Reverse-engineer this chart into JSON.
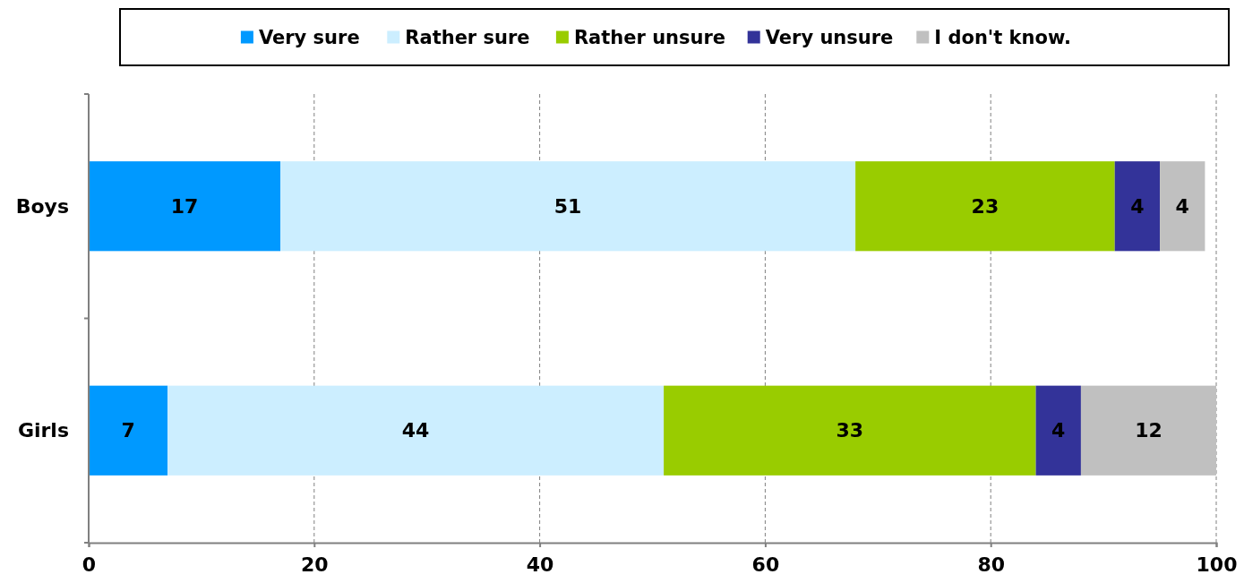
{
  "chart_data": {
    "type": "bar",
    "orientation": "horizontal",
    "stacked": true,
    "categories": [
      "Boys",
      "Girls"
    ],
    "series": [
      {
        "name": "Very sure",
        "color": "#0099ff",
        "values": [
          17,
          7
        ]
      },
      {
        "name": "Rather sure",
        "color": "#cceeff",
        "values": [
          51,
          44
        ]
      },
      {
        "name": "Rather unsure",
        "color": "#99cc00",
        "values": [
          23,
          33
        ]
      },
      {
        "name": "Very unsure",
        "color": "#333399",
        "values": [
          4,
          4
        ]
      },
      {
        "name": "I don't know.",
        "color": "#c0c0c0",
        "values": [
          4,
          12
        ]
      }
    ],
    "xlim": [
      0,
      100
    ],
    "xticks": [
      0,
      20,
      40,
      60,
      80,
      100
    ],
    "grid": "x",
    "legend": "top",
    "data_labels": true
  }
}
